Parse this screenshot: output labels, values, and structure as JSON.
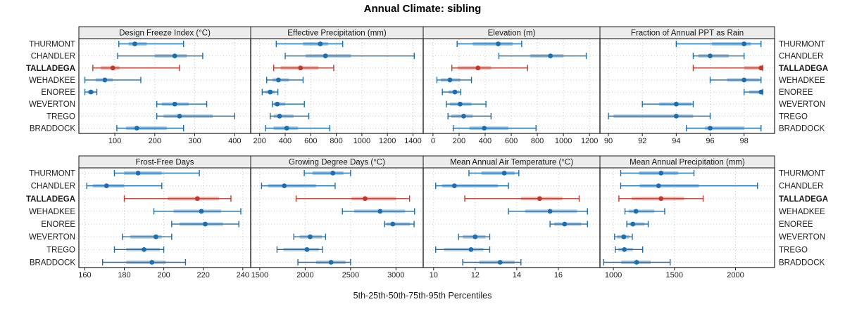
{
  "title": "Annual Climate: sibling",
  "x_axis_label": "5th-25th-50th-75th-95th Percentiles",
  "sites": [
    "THURMONT",
    "CHANDLER",
    "TALLADEGA",
    "WEHADKEE",
    "ENOREE",
    "WEVERTON",
    "TREGO",
    "BRADDOCK"
  ],
  "highlight_site": "TALLADEGA",
  "percentile_levels": [
    5,
    25,
    50,
    75,
    95
  ],
  "colors": {
    "series_normal": "#1c6fae",
    "series_highlight": "#c0392b",
    "band_opacity": 0.35,
    "strip_bg": "#ececec",
    "frame": "#1a1a1a",
    "grid": "#c9c9c9",
    "text": "#1a1a1a"
  },
  "chart_data": [
    {
      "type": "dot-whisker-percentiles",
      "row": 0,
      "col": 0,
      "title": "Design Freeze Index (°C)",
      "xlim": [
        10,
        440
      ],
      "ticks": [
        100,
        200,
        300,
        400
      ],
      "grid": true,
      "series": [
        {
          "site": "THURMONT",
          "values": [
            110,
            135,
            150,
            180,
            272
          ]
        },
        {
          "site": "CHANDLER",
          "values": [
            107,
            200,
            250,
            280,
            320
          ]
        },
        {
          "site": "TALLADEGA",
          "values": [
            45,
            65,
            95,
            112,
            262
          ]
        },
        {
          "site": "WEHADKEE",
          "values": [
            25,
            52,
            75,
            95,
            165
          ]
        },
        {
          "site": "ENOREE",
          "values": [
            25,
            32,
            40,
            48,
            55
          ]
        },
        {
          "site": "WEVERTON",
          "values": [
            205,
            218,
            250,
            285,
            330
          ]
        },
        {
          "site": "TREGO",
          "values": [
            205,
            222,
            262,
            345,
            400
          ]
        },
        {
          "site": "BRADDOCK",
          "values": [
            105,
            128,
            155,
            230,
            272
          ]
        }
      ]
    },
    {
      "type": "dot-whisker-percentiles",
      "row": 0,
      "col": 1,
      "title": "Effective Precipitation (mm)",
      "xlim": [
        130,
        1480
      ],
      "ticks": [
        200,
        400,
        600,
        800,
        1000,
        1200,
        1400
      ],
      "grid": true,
      "series": [
        {
          "site": "THURMONT",
          "values": [
            330,
            540,
            675,
            735,
            850
          ]
        },
        {
          "site": "CHANDLER",
          "values": [
            400,
            560,
            715,
            915,
            1410
          ]
        },
        {
          "site": "TALLADEGA",
          "values": [
            310,
            365,
            520,
            660,
            780
          ]
        },
        {
          "site": "WEHADKEE",
          "values": [
            255,
            300,
            347,
            430,
            540
          ]
        },
        {
          "site": "ENOREE",
          "values": [
            220,
            245,
            283,
            320,
            343
          ]
        },
        {
          "site": "WEVERTON",
          "values": [
            300,
            312,
            338,
            400,
            550
          ]
        },
        {
          "site": "TREGO",
          "values": [
            283,
            310,
            356,
            465,
            585
          ]
        },
        {
          "site": "BRADDOCK",
          "values": [
            246,
            309,
            412,
            500,
            749
          ]
        }
      ]
    },
    {
      "type": "dot-whisker-percentiles",
      "row": 0,
      "col": 2,
      "title": "Elevation (m)",
      "xlim": [
        -75,
        1280
      ],
      "ticks": [
        0,
        200,
        400,
        600,
        800,
        1000,
        1200
      ],
      "grid": true,
      "series": [
        {
          "site": "THURMONT",
          "values": [
            185,
            305,
            500,
            610,
            680
          ]
        },
        {
          "site": "CHANDLER",
          "values": [
            505,
            745,
            900,
            1000,
            1175
          ]
        },
        {
          "site": "TALLADEGA",
          "values": [
            145,
            190,
            345,
            445,
            725
          ]
        },
        {
          "site": "WEHADKEE",
          "values": [
            30,
            60,
            130,
            210,
            295
          ]
        },
        {
          "site": "ENOREE",
          "values": [
            72,
            120,
            168,
            199,
            213
          ]
        },
        {
          "site": "WEVERTON",
          "values": [
            102,
            130,
            208,
            296,
            406
          ]
        },
        {
          "site": "TREGO",
          "values": [
            115,
            140,
            235,
            305,
            445
          ]
        },
        {
          "site": "BRADDOCK",
          "values": [
            155,
            280,
            393,
            578,
            790
          ]
        }
      ]
    },
    {
      "type": "dot-whisker-percentiles",
      "row": 0,
      "col": 3,
      "title": "Fraction of Annual PPT as Rain",
      "xlim": [
        89.5,
        99.8
      ],
      "ticks": [
        90,
        92,
        94,
        96,
        98
      ],
      "grid": true,
      "series": [
        {
          "site": "THURMONT",
          "values": [
            94,
            96.1,
            98,
            98.4,
            99
          ]
        },
        {
          "site": "CHANDLER",
          "values": [
            95,
            95.3,
            96,
            97.1,
            98
          ]
        },
        {
          "site": "TALLADEGA",
          "values": [
            95,
            98,
            99,
            99,
            99.1
          ]
        },
        {
          "site": "WEHADKEE",
          "values": [
            96,
            97,
            98,
            98.9,
            99
          ]
        },
        {
          "site": "ENOREE",
          "values": [
            98,
            98.3,
            99,
            99,
            99.1
          ]
        },
        {
          "site": "WEVERTON",
          "values": [
            92,
            93,
            94,
            94.9,
            95
          ]
        },
        {
          "site": "TREGO",
          "values": [
            90,
            90.3,
            94,
            95,
            96
          ]
        },
        {
          "site": "BRADDOCK",
          "values": [
            94.6,
            95.7,
            96,
            98,
            99
          ]
        }
      ]
    },
    {
      "type": "dot-whisker-percentiles",
      "row": 1,
      "col": 0,
      "title": "Frost-Free Days",
      "xlim": [
        157,
        244
      ],
      "ticks": [
        160,
        180,
        200,
        220,
        240
      ],
      "grid": true,
      "series": [
        {
          "site": "THURMONT",
          "values": [
            175,
            180,
            187,
            199,
            218
          ]
        },
        {
          "site": "CHANDLER",
          "values": [
            161,
            164,
            171,
            180,
            199
          ]
        },
        {
          "site": "TALLADEGA",
          "values": [
            180,
            202,
            217,
            228,
            234
          ]
        },
        {
          "site": "WEHADKEE",
          "values": [
            195,
            205,
            219,
            229,
            239
          ]
        },
        {
          "site": "ENOREE",
          "values": [
            204,
            208,
            221,
            230,
            238
          ]
        },
        {
          "site": "WEVERTON",
          "values": [
            179,
            183,
            196,
            199,
            204
          ]
        },
        {
          "site": "TREGO",
          "values": [
            175,
            181,
            190,
            198,
            200
          ]
        },
        {
          "site": "BRADDOCK",
          "values": [
            169,
            181,
            194,
            201,
            211
          ]
        }
      ]
    },
    {
      "type": "dot-whisker-percentiles",
      "row": 1,
      "col": 1,
      "title": "Growing Degree Days (°C)",
      "xlim": [
        1400,
        3300
      ],
      "ticks": [
        1500,
        2000,
        2500,
        3000
      ],
      "grid": true,
      "series": [
        {
          "site": "THURMONT",
          "values": [
            1990,
            2080,
            2305,
            2420,
            2500
          ]
        },
        {
          "site": "CHANDLER",
          "values": [
            1520,
            1590,
            1770,
            2120,
            2330
          ]
        },
        {
          "site": "TALLADEGA",
          "values": [
            1900,
            2510,
            2660,
            3000,
            3150
          ]
        },
        {
          "site": "WEHADKEE",
          "values": [
            2410,
            2540,
            2825,
            3100,
            3205
          ]
        },
        {
          "site": "ENOREE",
          "values": [
            2875,
            2895,
            2965,
            3155,
            3200
          ]
        },
        {
          "site": "WEVERTON",
          "values": [
            1875,
            1940,
            2055,
            2185,
            2225
          ]
        },
        {
          "site": "TREGO",
          "values": [
            1690,
            1760,
            2020,
            2150,
            2190
          ]
        },
        {
          "site": "BRADDOCK",
          "values": [
            1920,
            2120,
            2285,
            2445,
            2500
          ]
        }
      ]
    },
    {
      "type": "dot-whisker-percentiles",
      "row": 1,
      "col": 2,
      "title": "Mean Annual Air Temperature (°C)",
      "xlim": [
        9.5,
        18.0
      ],
      "ticks": [
        10,
        12,
        14,
        16
      ],
      "grid": true,
      "series": [
        {
          "site": "THURMONT",
          "values": [
            11.7,
            12.3,
            13.4,
            13.9,
            14.1
          ]
        },
        {
          "site": "CHANDLER",
          "values": [
            10.1,
            10.4,
            11.0,
            13.1,
            13.6
          ]
        },
        {
          "site": "TALLADEGA",
          "values": [
            11.5,
            14.2,
            15.1,
            16.2,
            17.0
          ]
        },
        {
          "site": "WEHADKEE",
          "values": [
            13.6,
            14.4,
            15.6,
            16.9,
            17.4
          ]
        },
        {
          "site": "ENOREE",
          "values": [
            15.6,
            15.8,
            16.3,
            17.1,
            17.4
          ]
        },
        {
          "site": "WEVERTON",
          "values": [
            11.2,
            11.4,
            12.0,
            12.5,
            12.7
          ]
        },
        {
          "site": "TREGO",
          "values": [
            10.1,
            10.5,
            11.8,
            12.4,
            12.7
          ]
        },
        {
          "site": "BRADDOCK",
          "values": [
            11.4,
            12.2,
            13.2,
            13.9,
            14.2
          ]
        }
      ]
    },
    {
      "type": "dot-whisker-percentiles",
      "row": 1,
      "col": 3,
      "title": "Mean Annual Precipitation (mm)",
      "xlim": [
        890,
        2320
      ],
      "ticks": [
        1000,
        1500,
        2000
      ],
      "grid": true,
      "series": [
        {
          "site": "THURMONT",
          "values": [
            1060,
            1210,
            1390,
            1530,
            1660
          ]
        },
        {
          "site": "CHANDLER",
          "values": [
            1060,
            1215,
            1370,
            1700,
            2180
          ]
        },
        {
          "site": "TALLADEGA",
          "values": [
            1045,
            1150,
            1390,
            1580,
            1735
          ]
        },
        {
          "site": "WEHADKEE",
          "values": [
            1095,
            1125,
            1185,
            1335,
            1420
          ]
        },
        {
          "site": "ENOREE",
          "values": [
            1110,
            1130,
            1160,
            1255,
            1285
          ]
        },
        {
          "site": "WEVERTON",
          "values": [
            1010,
            1030,
            1085,
            1130,
            1155
          ]
        },
        {
          "site": "TREGO",
          "values": [
            1015,
            1040,
            1090,
            1160,
            1240
          ]
        },
        {
          "site": "BRADDOCK",
          "values": [
            920,
            1065,
            1190,
            1305,
            1465
          ]
        }
      ]
    }
  ]
}
